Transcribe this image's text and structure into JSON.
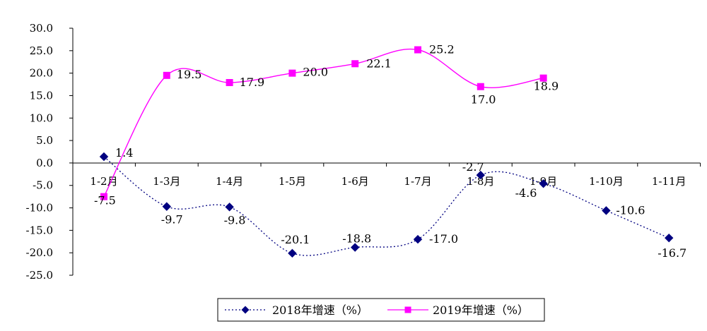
{
  "chart_data": {
    "type": "line",
    "categories": [
      "1-2月",
      "1-3月",
      "1-4月",
      "1-5月",
      "1-6月",
      "1-7月",
      "1-8月",
      "1-9月",
      "1-10月",
      "1-11月"
    ],
    "ylim": [
      -25,
      30
    ],
    "yticks": [
      "30.0",
      "25.0",
      "20.0",
      "15.0",
      "10.0",
      "5.0",
      "0.0",
      "-5.0",
      "-10.0",
      "-15.0",
      "-20.0",
      "-25.0"
    ],
    "grid": false,
    "legend_position": "bottom",
    "series": [
      {
        "name": "2018年增速（%）",
        "color": "#000080",
        "marker": "diamond",
        "line_style": "dotted",
        "values": [
          1.4,
          -9.7,
          -9.8,
          -20.1,
          -18.8,
          -17.0,
          -2.7,
          -4.6,
          -10.6,
          -16.7
        ],
        "labels": [
          "1.4",
          "-9.7",
          "-9.8",
          "-20.1",
          "-18.8",
          "-17.0",
          "-2.7",
          "-4.6",
          "-10.6",
          "-16.7"
        ]
      },
      {
        "name": "2019年增速（%）",
        "color": "#FF00FF",
        "marker": "square",
        "line_style": "solid",
        "values": [
          -7.5,
          19.5,
          17.9,
          20.0,
          22.1,
          25.2,
          17.0,
          18.9,
          null,
          null
        ],
        "labels": [
          "-7.5",
          "19.5",
          "17.9",
          "20.0",
          "22.1",
          "25.2",
          "17.0",
          "18.9",
          null,
          null
        ]
      }
    ]
  }
}
